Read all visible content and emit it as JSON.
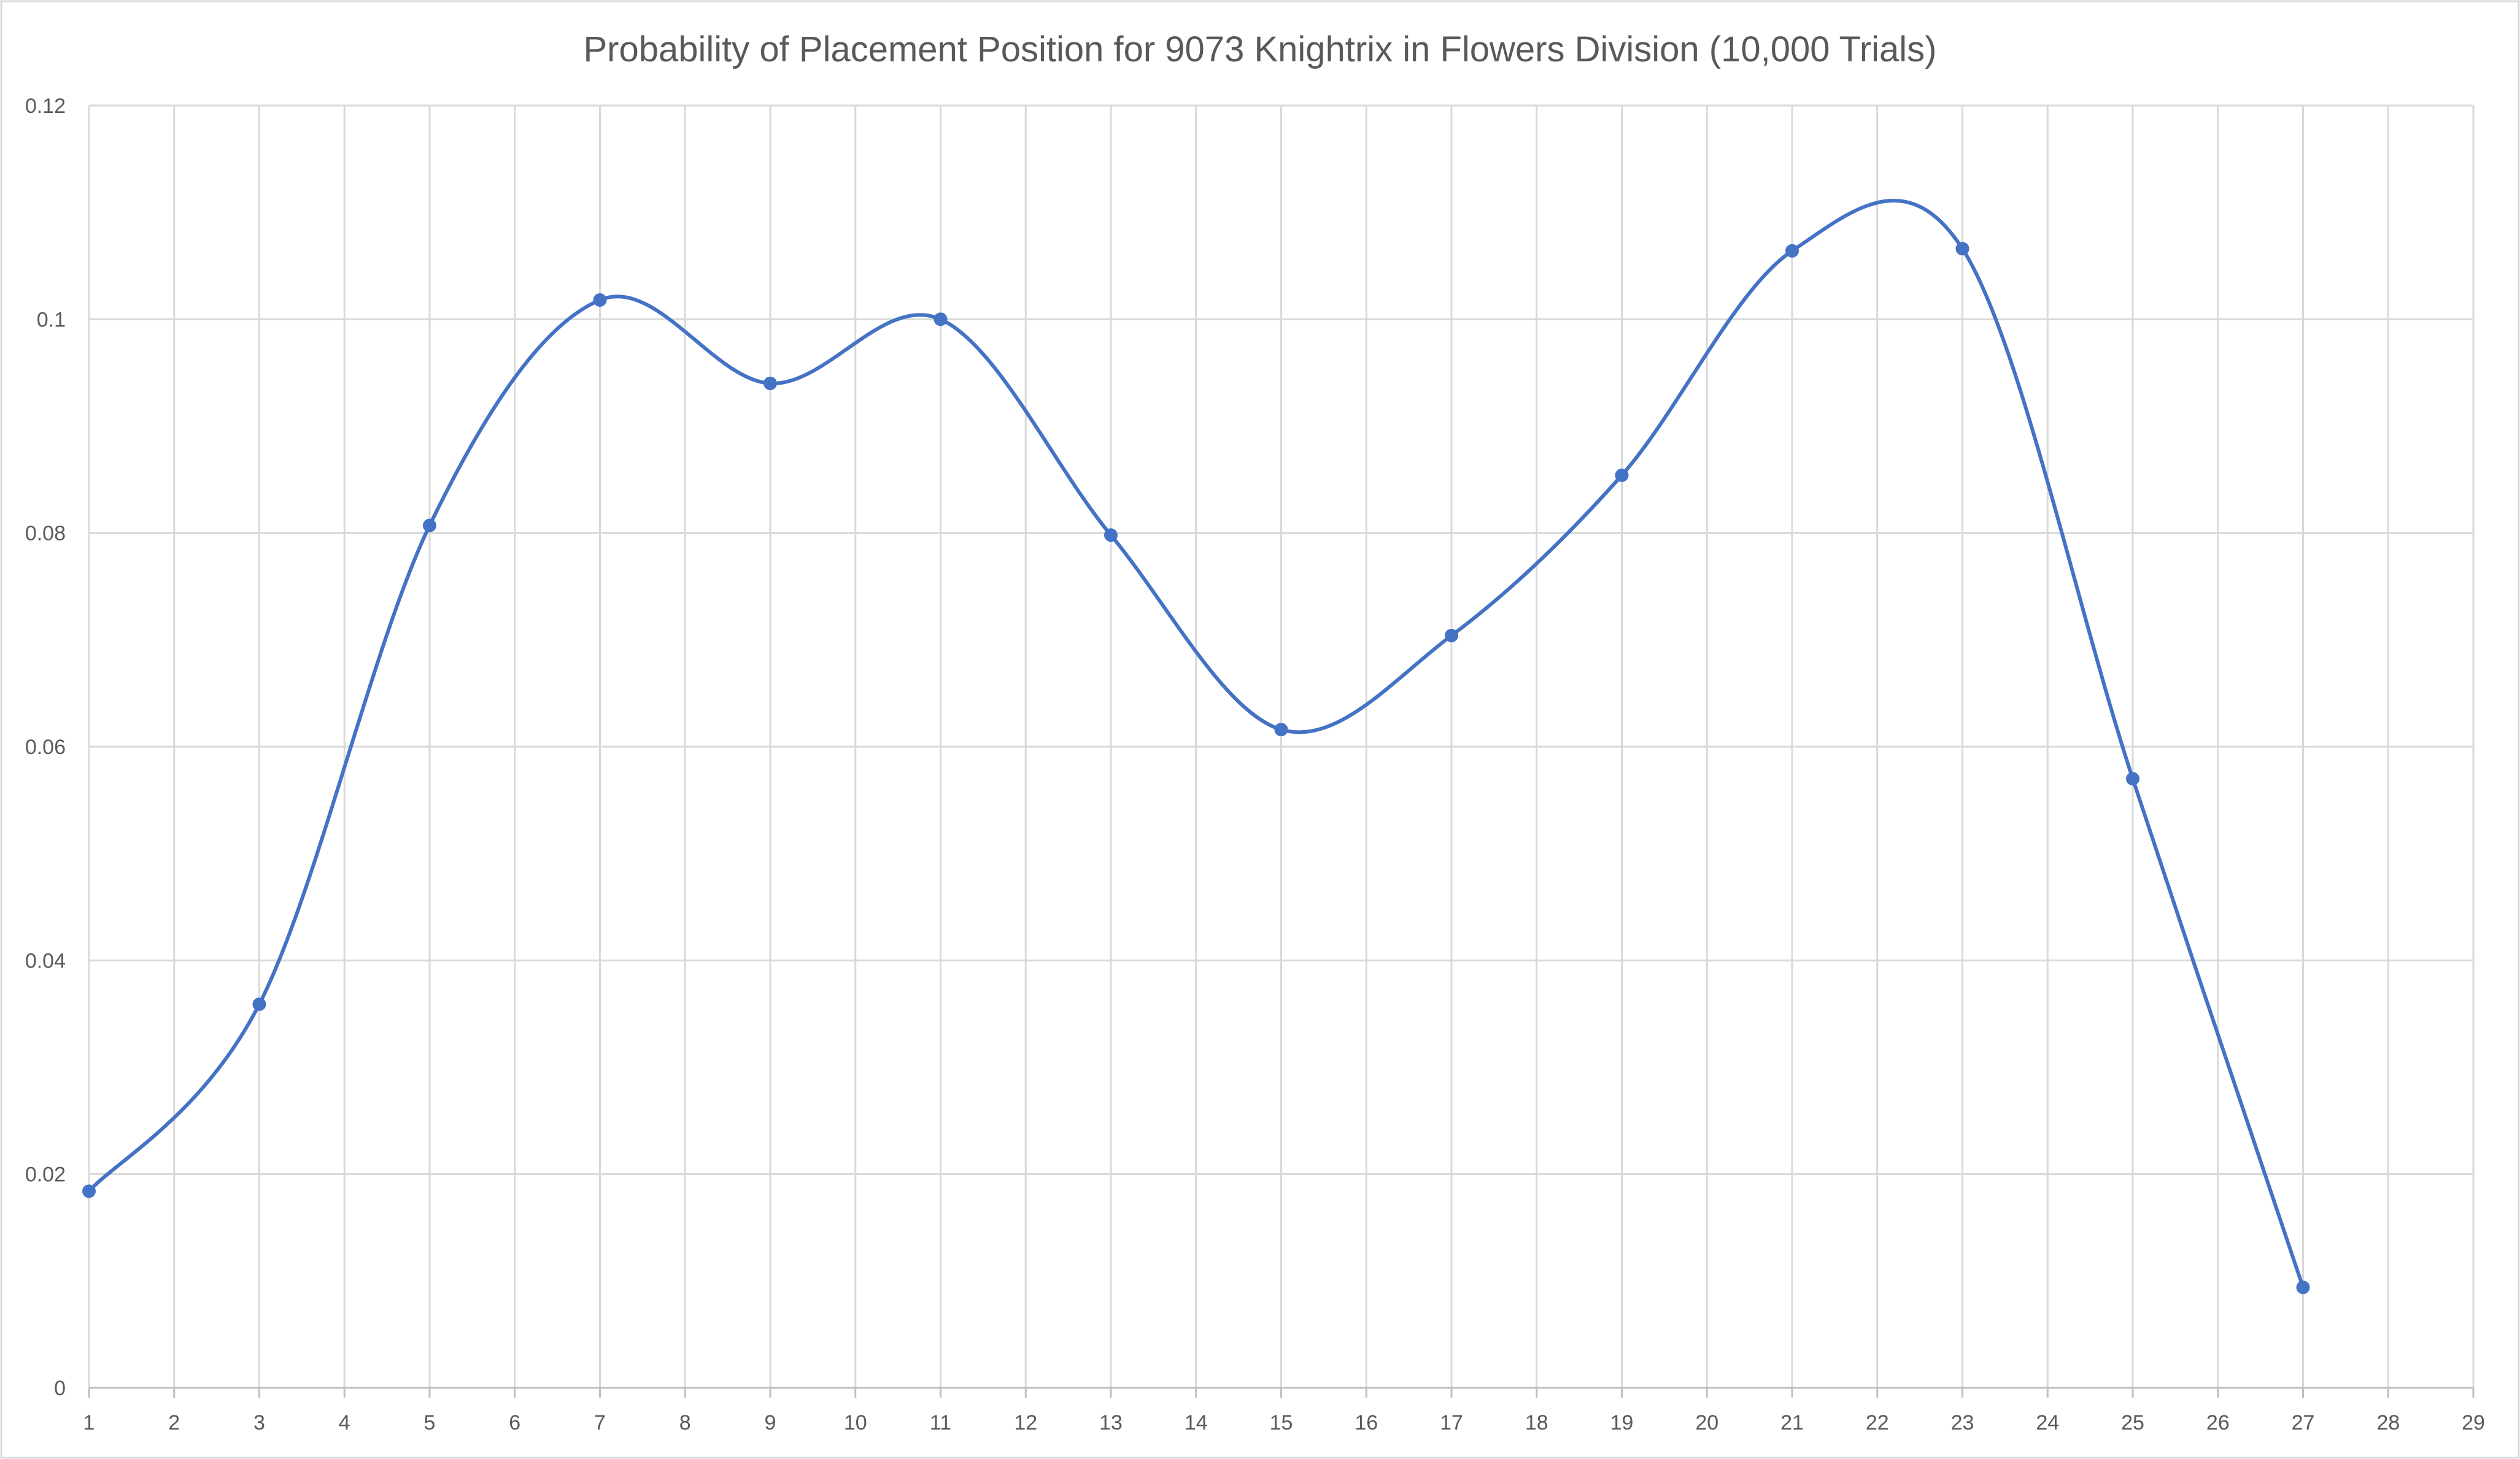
{
  "chart_data": {
    "type": "line",
    "title": "Probability of Placement Position for 9073 Knightrix in Flowers Division (10,000 Trials)",
    "xlabel": "",
    "ylabel": "",
    "x_ticks": [
      "1",
      "2",
      "3",
      "4",
      "5",
      "6",
      "7",
      "8",
      "9",
      "10",
      "11",
      "12",
      "13",
      "14",
      "15",
      "16",
      "17",
      "18",
      "19",
      "20",
      "21",
      "22",
      "23",
      "24",
      "25",
      "26",
      "27",
      "28",
      "29"
    ],
    "xlim": [
      1,
      29
    ],
    "y_ticks": [
      "0",
      "0.02",
      "0.04",
      "0.06",
      "0.08",
      "0.1",
      "0.12"
    ],
    "ylim": [
      0,
      0.12
    ],
    "grid": true,
    "smoothed": true,
    "legend": "none",
    "series": [
      {
        "color": "#4472c4",
        "x": [
          1,
          3,
          5,
          7,
          9,
          11,
          13,
          15,
          17,
          19,
          21,
          23,
          25,
          27
        ],
        "y": [
          0.0184,
          0.0359,
          0.0807,
          0.1018,
          0.094,
          0.1,
          0.0798,
          0.0616,
          0.0704,
          0.0854,
          0.1064,
          0.1066,
          0.057,
          0.0094
        ]
      }
    ]
  }
}
